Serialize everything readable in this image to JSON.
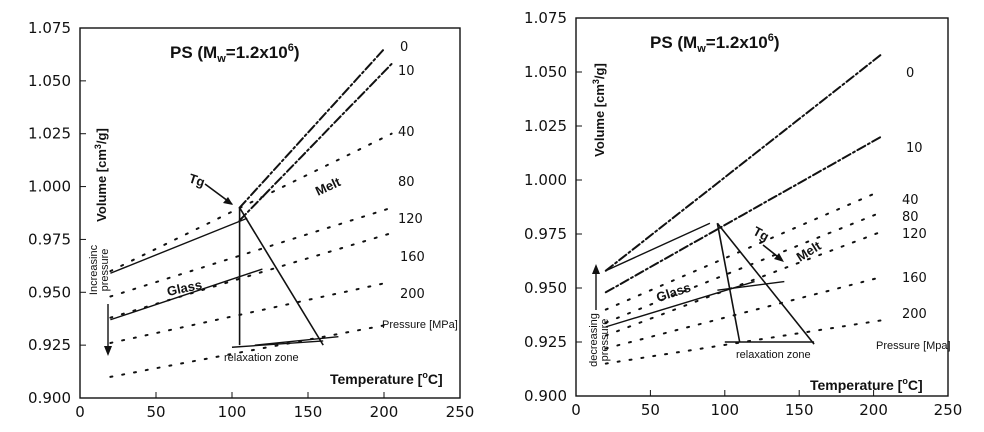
{
  "chart_data": [
    {
      "type": "line",
      "title": "PS (M_w=1.2x10^6)",
      "title_parts": {
        "main": "PS (M",
        "sub": "w",
        "mid": "=1.2x10",
        "sup": "6",
        "end": ")"
      },
      "xlabel": "Temperature [°C]",
      "xlabel_parts": {
        "main": "Temperature [",
        "sup": "o",
        "end": "C]"
      },
      "ylabel": "Volume [cm³/g]",
      "ylabel_parts": {
        "main": "Volume [cm",
        "sup": "3",
        "end": "/g]"
      },
      "xlim": [
        0,
        250
      ],
      "ylim": [
        0.9,
        1.075
      ],
      "x_ticks": [
        "0",
        "50",
        "100",
        "150",
        "200",
        "250"
      ],
      "y_ticks": [
        "0.900",
        "0.925",
        "0.950",
        "0.975",
        "1.000",
        "1.025",
        "1.050",
        "1.075"
      ],
      "grid": false,
      "series": [
        {
          "name": "0",
          "x": [
            105,
            200
          ],
          "y": [
            0.99,
            1.065
          ]
        },
        {
          "name": "10",
          "x": [
            105,
            205
          ],
          "y": [
            0.984,
            1.058
          ]
        },
        {
          "name": "40",
          "x": [
            20,
            205
          ],
          "y": [
            0.96,
            1.025
          ]
        },
        {
          "name": "80",
          "x": [
            20,
            205
          ],
          "y": [
            0.948,
            0.99
          ]
        },
        {
          "name": "120",
          "x": [
            20,
            205
          ],
          "y": [
            0.938,
            0.978
          ]
        },
        {
          "name": "160",
          "x": [
            20,
            205
          ],
          "y": [
            0.926,
            0.955
          ]
        },
        {
          "name": "200",
          "x": [
            20,
            205
          ],
          "y": [
            0.91,
            0.935
          ]
        }
      ],
      "pressure_labels": [
        "0",
        "10",
        "40",
        "80",
        "120",
        "160",
        "200"
      ],
      "pressure_unit_label": "Pressure [MPa]",
      "annotations": {
        "tg": "Tg",
        "melt": "Melt",
        "glass": "Glass",
        "relaxation": "relaxation zone",
        "arrow_label": "increasing pressure",
        "arrow_label_lines": [
          "Increasinc",
          "pressure"
        ]
      }
    },
    {
      "type": "line",
      "title": "PS (M_w=1.2x10^6)",
      "title_parts": {
        "main": "PS (M",
        "sub": "w",
        "mid": "=1.2x10",
        "sup": "6",
        "end": ")"
      },
      "xlabel": "Temperature [°C]",
      "xlabel_parts": {
        "main": "Temperature [",
        "sup": "o",
        "end": "C]"
      },
      "ylabel": "Volume [cm³/g]",
      "ylabel_parts": {
        "main": "Volume [cm",
        "sup": "3",
        "end": "/g]"
      },
      "xlim": [
        0,
        250
      ],
      "ylim": [
        0.9,
        1.075
      ],
      "x_ticks": [
        "0",
        "50",
        "100",
        "150",
        "200",
        "250"
      ],
      "y_ticks": [
        "0.900",
        "0.925",
        "0.950",
        "0.975",
        "1.000",
        "1.025",
        "1.050",
        "1.075"
      ],
      "grid": false,
      "series": [
        {
          "name": "0",
          "x": [
            20,
            205
          ],
          "y": [
            0.958,
            1.058
          ]
        },
        {
          "name": "10",
          "x": [
            20,
            205
          ],
          "y": [
            0.948,
            1.02
          ]
        },
        {
          "name": "40",
          "x": [
            20,
            205
          ],
          "y": [
            0.94,
            0.995
          ]
        },
        {
          "name": "80",
          "x": [
            20,
            205
          ],
          "y": [
            0.934,
            0.985
          ]
        },
        {
          "name": "120",
          "x": [
            20,
            205
          ],
          "y": [
            0.928,
            0.976
          ]
        },
        {
          "name": "160",
          "x": [
            20,
            205
          ],
          "y": [
            0.922,
            0.955
          ]
        },
        {
          "name": "200",
          "x": [
            20,
            205
          ],
          "y": [
            0.915,
            0.935
          ]
        }
      ],
      "pressure_labels": [
        "0",
        "10",
        "40",
        "80",
        "120",
        "160",
        "200"
      ],
      "pressure_unit_label": "Pressure [Mpa]",
      "annotations": {
        "tg": "Tg",
        "melt": "Melt",
        "glass": "Glass",
        "relaxation": "relaxation zone",
        "arrow_label": "decreasing pressure",
        "arrow_label_lines": [
          "decreasing",
          "pressure"
        ]
      }
    }
  ]
}
